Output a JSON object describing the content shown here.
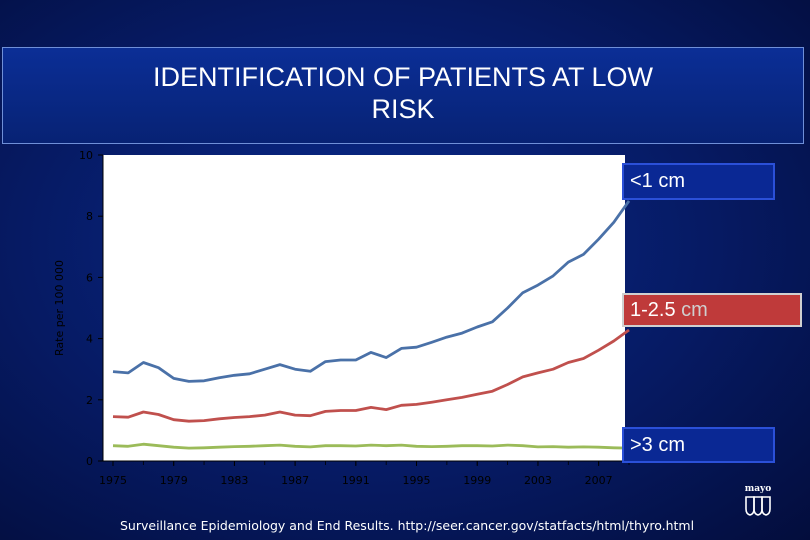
{
  "title": "IDENTIFICATION OF PATIENTS AT LOW RISK",
  "source_text": "Surveillance Epidemiology and End Results. http://seer.cancer.gov/statfacts/html/thyro.html",
  "logo_text": "mayo",
  "boxes": {
    "lt1": "<1 cm",
    "size12_main": "1-2.5",
    "size12_unit": "cm",
    "gt3": ">3 cm"
  },
  "colors": {
    "lt1": "#4a71a8",
    "size12": "#c0504d",
    "gt3": "#9bbb59"
  },
  "chart_data": {
    "type": "line",
    "title": "",
    "xlabel": "",
    "ylabel": "Rate per 100 000",
    "ylim": [
      0,
      10
    ],
    "xlim": [
      1975,
      2009
    ],
    "yticks": [
      "0",
      "2",
      "4",
      "6",
      "8",
      "10"
    ],
    "xticks": [
      "1975",
      "1979",
      "1983",
      "1987",
      "1991",
      "1995",
      "1999",
      "2003",
      "2007"
    ],
    "grid": false,
    "x": [
      1975,
      1976,
      1977,
      1978,
      1979,
      1980,
      1981,
      1982,
      1983,
      1984,
      1985,
      1986,
      1987,
      1988,
      1989,
      1990,
      1991,
      1992,
      1993,
      1994,
      1995,
      1996,
      1997,
      1998,
      1999,
      2000,
      2001,
      2002,
      2003,
      2004,
      2005,
      2006,
      2007,
      2008,
      2009
    ],
    "series": [
      {
        "name": "<1 cm",
        "values": [
          2.92,
          2.88,
          3.22,
          3.05,
          2.7,
          2.6,
          2.62,
          2.72,
          2.8,
          2.85,
          3.0,
          3.15,
          3.0,
          2.93,
          3.25,
          3.3,
          3.3,
          3.55,
          3.38,
          3.68,
          3.72,
          3.88,
          4.05,
          4.18,
          4.38,
          4.55,
          5.0,
          5.5,
          5.75,
          6.05,
          6.5,
          6.75,
          7.25,
          7.8,
          8.5
        ]
      },
      {
        "name": "1-2.5 cm",
        "values": [
          1.45,
          1.43,
          1.6,
          1.52,
          1.35,
          1.3,
          1.32,
          1.38,
          1.42,
          1.45,
          1.5,
          1.6,
          1.5,
          1.48,
          1.62,
          1.65,
          1.65,
          1.75,
          1.68,
          1.82,
          1.85,
          1.92,
          2.0,
          2.08,
          2.18,
          2.28,
          2.5,
          2.75,
          2.88,
          3.0,
          3.22,
          3.35,
          3.62,
          3.92,
          4.28
        ]
      },
      {
        "name": ">3 cm",
        "values": [
          0.5,
          0.48,
          0.55,
          0.5,
          0.45,
          0.42,
          0.43,
          0.45,
          0.47,
          0.48,
          0.5,
          0.52,
          0.48,
          0.46,
          0.5,
          0.5,
          0.49,
          0.52,
          0.5,
          0.52,
          0.48,
          0.47,
          0.48,
          0.5,
          0.5,
          0.49,
          0.52,
          0.5,
          0.46,
          0.47,
          0.45,
          0.46,
          0.45,
          0.43,
          0.42
        ]
      }
    ]
  }
}
